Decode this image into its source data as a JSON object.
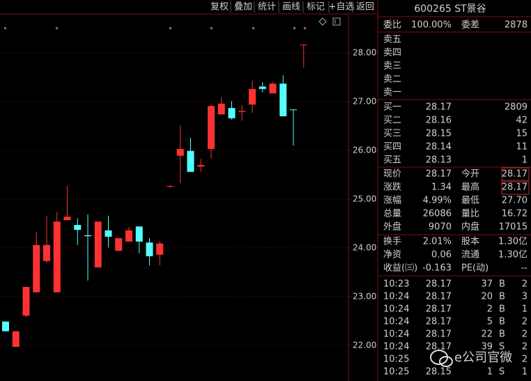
{
  "toolbar": [
    "复权",
    "叠加",
    "统计",
    "画线",
    "标记",
    "+自选",
    "返回"
  ],
  "chart_data": {
    "type": "candlestick",
    "open": [
      22.49,
      21.97,
      22.61,
      23.09,
      23.73,
      23.09,
      24.57,
      24.47,
      24.26,
      23.6,
      24.36,
      23.94,
      24.13,
      24.44,
      24.11,
      23.86,
      25.26,
      25.89,
      25.99,
      25.67,
      26.03,
      26.74,
      26.87,
      26.79,
      26.94,
      27.31,
      27.17,
      27.37,
      26.84,
      28.17
    ],
    "high": [
      22.49,
      22.29,
      23.2,
      24.33,
      24.66,
      24.74,
      25.27,
      24.61,
      24.69,
      24.54,
      24.66,
      24.2,
      24.43,
      24.44,
      24.2,
      24.14,
      25.29,
      26.51,
      26.26,
      25.83,
      26.94,
      27.09,
      27.01,
      26.93,
      27.43,
      27.4,
      27.4,
      27.54,
      26.84,
      28.17
    ],
    "low": [
      22.29,
      21.97,
      22.58,
      23.09,
      23.69,
      23.09,
      24.57,
      24.06,
      23.33,
      23.6,
      24.01,
      23.94,
      24.13,
      23.89,
      23.64,
      23.64,
      25.23,
      25.33,
      25.56,
      25.56,
      25.83,
      26.74,
      26.63,
      26.61,
      26.77,
      27.19,
      27.17,
      26.7,
      26.1,
      27.7
    ],
    "close": [
      22.29,
      22.29,
      23.2,
      24.06,
      24.06,
      24.54,
      24.64,
      24.37,
      24.24,
      24.54,
      24.23,
      24.2,
      24.36,
      24.13,
      23.83,
      24.09,
      25.27,
      26.03,
      25.56,
      25.7,
      26.91,
      26.96,
      26.66,
      26.81,
      27.26,
      27.26,
      27.37,
      26.7,
      26.83,
      28.17
    ],
    "up_color": "#ff3232",
    "down_color": "#54ffff",
    "ylim": [
      21.27,
      28.8
    ],
    "yticks": [
      {
        "value": 28,
        "label": "28.00"
      },
      {
        "value": 27,
        "label": "27.00"
      },
      {
        "value": 26,
        "label": "26.00"
      },
      {
        "value": 25,
        "label": "25.00"
      },
      {
        "value": 24,
        "label": "24.00"
      },
      {
        "value": 23,
        "label": "23.00"
      },
      {
        "value": 22,
        "label": "22.00"
      }
    ],
    "grid": true
  },
  "header": {
    "title": "600265 ST景谷"
  },
  "ratio": [
    "委比",
    "100.00%",
    "委差",
    "2878"
  ],
  "sell": [
    "卖五",
    "卖四",
    "卖三",
    "卖二",
    "卖一"
  ],
  "buy": [
    [
      "买一",
      "28.17",
      "2809"
    ],
    [
      "买二",
      "28.16",
      "42"
    ],
    [
      "买三",
      "28.15",
      "15"
    ],
    [
      "买四",
      "28.14",
      "11"
    ],
    [
      "买五",
      "28.13",
      "1"
    ]
  ],
  "quote": [
    [
      "现价",
      "28.17",
      "今开",
      "28.17"
    ],
    [
      "涨跌",
      "1.34",
      "最高",
      "28.17"
    ],
    [
      "涨幅",
      "4.99%",
      "最低",
      "27.70"
    ],
    [
      "总量",
      "26086",
      "量比",
      "16.72"
    ],
    [
      "外盘",
      "9070",
      "内盘",
      "17015"
    ]
  ],
  "finance": [
    [
      "换手",
      "2.01%",
      "股本",
      "1.30亿"
    ],
    [
      "净资",
      "0.06",
      "流通",
      "1.30亿"
    ],
    [
      "收益(㈢)",
      "-0.163",
      "PE(动)",
      "--"
    ]
  ],
  "trades": [
    {
      "time": "10:23",
      "price": "28.17",
      "volume": "37",
      "side": "B",
      "count": "2"
    },
    {
      "time": "10:24",
      "price": "28.17",
      "volume": "20",
      "side": "B",
      "count": "3"
    },
    {
      "time": "10:24",
      "price": "28.17",
      "volume": "2",
      "side": "B",
      "count": "1"
    },
    {
      "time": "10:24",
      "price": "28.17",
      "volume": "5",
      "side": "B",
      "count": "2"
    },
    {
      "time": "10:24",
      "price": "28.17",
      "volume": "22",
      "side": "B",
      "count": "2"
    },
    {
      "time": "10:24",
      "price": "28.17",
      "volume": "39",
      "side": "S",
      "count": "2"
    },
    {
      "time": "10:25",
      "count": "2"
    },
    {
      "time": "10:25",
      "price": "28.15",
      "volume": "1",
      "side": "S",
      "count": "1"
    }
  ],
  "watermark": "e公司官微"
}
